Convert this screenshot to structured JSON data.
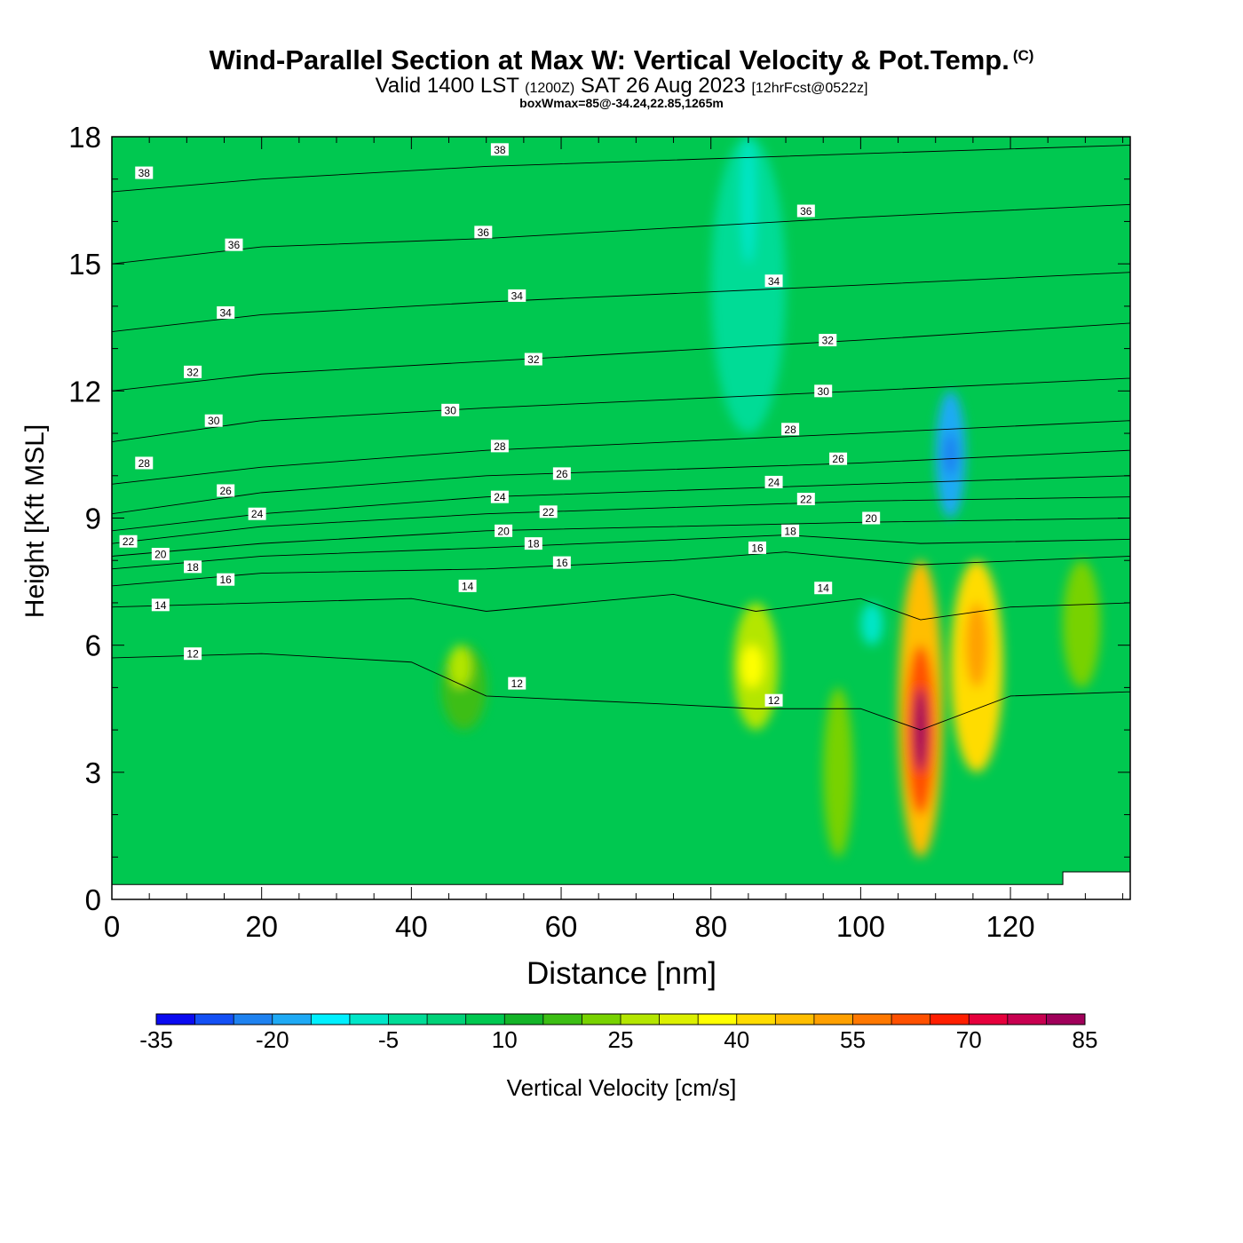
{
  "header": {
    "title": "Wind-Parallel Section at Max W: Vertical Velocity & Pot.Temp.",
    "copyright": "(C)",
    "valid_pre": "Valid 1400 LST",
    "valid_utc": "(1200Z)",
    "valid_date": "SAT 26 Aug 2023",
    "forecast": "[12hrFcst@0522z]",
    "boxwmax": "boxWmax=85@-34.24,22.85,1265m"
  },
  "chart_data": {
    "type": "heatmap",
    "xlabel": "Distance [nm]",
    "ylabel": "Height [Kft MSL]",
    "xlim": [
      0,
      136
    ],
    "ylim": [
      0,
      18
    ],
    "xticks": [
      0,
      20,
      40,
      60,
      80,
      100,
      120
    ],
    "yticks": [
      0,
      3,
      6,
      9,
      12,
      15,
      18
    ],
    "colorbar": {
      "label": "Vertical Velocity [cm/s]",
      "tick_labels": [
        -35,
        -20,
        -5,
        10,
        25,
        40,
        55,
        70,
        85
      ],
      "levels": [
        -35,
        -30,
        -25,
        -20,
        -15,
        -10,
        -5,
        0,
        5,
        10,
        15,
        20,
        25,
        30,
        35,
        40,
        45,
        50,
        55,
        60,
        65,
        70,
        75,
        80,
        85
      ],
      "colors": [
        "#0a0af0",
        "#1450f5",
        "#1e82f0",
        "#1eaaf5",
        "#00f0ff",
        "#00e6c8",
        "#00dc96",
        "#00d278",
        "#00c850",
        "#14b428",
        "#3cbe14",
        "#78d200",
        "#b4e600",
        "#dcf000",
        "#ffff00",
        "#ffdc00",
        "#ffbe00",
        "#ffa000",
        "#ff7800",
        "#ff5000",
        "#ff1e00",
        "#e6003c",
        "#c80050",
        "#a0005a"
      ]
    },
    "cells": [
      {
        "x": [
          100,
          103
        ],
        "y": [
          6,
          7
        ],
        "w": -10
      },
      {
        "x": [
          110,
          114
        ],
        "y": [
          9,
          12
        ],
        "w": -20
      },
      {
        "x": [
          111,
          113
        ],
        "y": [
          10,
          11
        ],
        "w": -25
      },
      {
        "x": [
          80,
          90
        ],
        "y": [
          11,
          18
        ],
        "w": -5
      },
      {
        "x": [
          84,
          86
        ],
        "y": [
          15,
          18
        ],
        "w": -10
      },
      {
        "x": [
          44,
          50
        ],
        "y": [
          4,
          6
        ],
        "w": 15
      },
      {
        "x": [
          45,
          48
        ],
        "y": [
          5,
          6
        ],
        "w": 25
      },
      {
        "x": [
          83,
          89
        ],
        "y": [
          4,
          7
        ],
        "w": 25
      },
      {
        "x": [
          84,
          87
        ],
        "y": [
          5,
          6
        ],
        "w": 35
      },
      {
        "x": [
          105,
          111
        ],
        "y": [
          1,
          8
        ],
        "w": 45
      },
      {
        "x": [
          106,
          110
        ],
        "y": [
          2,
          6
        ],
        "w": 60
      },
      {
        "x": [
          107,
          109
        ],
        "y": [
          3,
          5
        ],
        "w": 80
      },
      {
        "x": [
          112,
          119
        ],
        "y": [
          3,
          8
        ],
        "w": 40
      },
      {
        "x": [
          114,
          117
        ],
        "y": [
          5,
          7
        ],
        "w": 50
      },
      {
        "x": [
          95,
          99
        ],
        "y": [
          1,
          5
        ],
        "w": 20
      },
      {
        "x": [
          127,
          132
        ],
        "y": [
          5,
          8
        ],
        "w": 20
      }
    ],
    "theta_contours": [
      {
        "label": "12",
        "points": [
          [
            0,
            5.7
          ],
          [
            20,
            5.8
          ],
          [
            40,
            5.6
          ],
          [
            50,
            4.8
          ],
          [
            75,
            4.6
          ],
          [
            86,
            4.5
          ],
          [
            100,
            4.5
          ],
          [
            108,
            4.0
          ],
          [
            120,
            4.8
          ],
          [
            136,
            4.9
          ]
        ]
      },
      {
        "label": "14",
        "points": [
          [
            0,
            6.9
          ],
          [
            20,
            7.0
          ],
          [
            40,
            7.1
          ],
          [
            50,
            6.8
          ],
          [
            75,
            7.2
          ],
          [
            86,
            6.8
          ],
          [
            100,
            7.1
          ],
          [
            108,
            6.6
          ],
          [
            120,
            6.9
          ],
          [
            136,
            7.0
          ]
        ]
      },
      {
        "label": "16",
        "points": [
          [
            0,
            7.4
          ],
          [
            20,
            7.7
          ],
          [
            50,
            7.8
          ],
          [
            75,
            8.0
          ],
          [
            90,
            8.2
          ],
          [
            108,
            7.9
          ],
          [
            136,
            8.1
          ]
        ]
      },
      {
        "label": "18",
        "points": [
          [
            0,
            7.8
          ],
          [
            20,
            8.1
          ],
          [
            50,
            8.3
          ],
          [
            90,
            8.6
          ],
          [
            108,
            8.4
          ],
          [
            136,
            8.5
          ]
        ]
      },
      {
        "label": "20",
        "points": [
          [
            0,
            8.1
          ],
          [
            20,
            8.4
          ],
          [
            50,
            8.7
          ],
          [
            100,
            8.9
          ],
          [
            136,
            9.0
          ]
        ]
      },
      {
        "label": "22",
        "points": [
          [
            0,
            8.4
          ],
          [
            20,
            8.8
          ],
          [
            50,
            9.1
          ],
          [
            100,
            9.4
          ],
          [
            136,
            9.5
          ]
        ]
      },
      {
        "label": "24",
        "points": [
          [
            0,
            8.7
          ],
          [
            20,
            9.1
          ],
          [
            50,
            9.5
          ],
          [
            100,
            9.8
          ],
          [
            136,
            10.0
          ]
        ]
      },
      {
        "label": "26",
        "points": [
          [
            0,
            9.1
          ],
          [
            20,
            9.6
          ],
          [
            50,
            10.0
          ],
          [
            100,
            10.3
          ],
          [
            136,
            10.6
          ]
        ]
      },
      {
        "label": "28",
        "points": [
          [
            0,
            9.8
          ],
          [
            20,
            10.2
          ],
          [
            50,
            10.6
          ],
          [
            100,
            11.0
          ],
          [
            136,
            11.3
          ]
        ]
      },
      {
        "label": "30",
        "points": [
          [
            0,
            10.8
          ],
          [
            20,
            11.3
          ],
          [
            50,
            11.6
          ],
          [
            100,
            12.0
          ],
          [
            136,
            12.3
          ]
        ]
      },
      {
        "label": "32",
        "points": [
          [
            0,
            12.0
          ],
          [
            20,
            12.4
          ],
          [
            50,
            12.7
          ],
          [
            100,
            13.2
          ],
          [
            136,
            13.6
          ]
        ]
      },
      {
        "label": "34",
        "points": [
          [
            0,
            13.4
          ],
          [
            20,
            13.8
          ],
          [
            50,
            14.1
          ],
          [
            100,
            14.5
          ],
          [
            136,
            14.8
          ]
        ]
      },
      {
        "label": "36",
        "points": [
          [
            0,
            15.0
          ],
          [
            20,
            15.4
          ],
          [
            50,
            15.6
          ],
          [
            100,
            16.1
          ],
          [
            136,
            16.4
          ]
        ]
      },
      {
        "label": "38",
        "points": [
          [
            0,
            16.7
          ],
          [
            20,
            17.0
          ],
          [
            50,
            17.3
          ],
          [
            100,
            17.6
          ],
          [
            136,
            17.8
          ]
        ]
      }
    ],
    "contour_labels": [
      {
        "text": "38",
        "x": 4.3,
        "y": 17.15
      },
      {
        "text": "38",
        "x": 51.8,
        "y": 17.7
      },
      {
        "text": "36",
        "x": 16.3,
        "y": 15.45
      },
      {
        "text": "36",
        "x": 49.6,
        "y": 15.75
      },
      {
        "text": "36",
        "x": 92.7,
        "y": 16.25
      },
      {
        "text": "34",
        "x": 15.2,
        "y": 13.85
      },
      {
        "text": "34",
        "x": 54.1,
        "y": 14.25
      },
      {
        "text": "34",
        "x": 88.4,
        "y": 14.6
      },
      {
        "text": "32",
        "x": 10.8,
        "y": 12.45
      },
      {
        "text": "32",
        "x": 56.3,
        "y": 12.75
      },
      {
        "text": "32",
        "x": 95.6,
        "y": 13.2
      },
      {
        "text": "30",
        "x": 13.6,
        "y": 11.3
      },
      {
        "text": "30",
        "x": 45.2,
        "y": 11.55
      },
      {
        "text": "30",
        "x": 95.0,
        "y": 12.0
      },
      {
        "text": "28",
        "x": 4.3,
        "y": 10.3
      },
      {
        "text": "28",
        "x": 51.8,
        "y": 10.7
      },
      {
        "text": "28",
        "x": 90.6,
        "y": 11.1
      },
      {
        "text": "26",
        "x": 15.2,
        "y": 9.65
      },
      {
        "text": "26",
        "x": 60.1,
        "y": 10.05
      },
      {
        "text": "26",
        "x": 97.0,
        "y": 10.4
      },
      {
        "text": "24",
        "x": 19.4,
        "y": 9.1
      },
      {
        "text": "24",
        "x": 51.8,
        "y": 9.5
      },
      {
        "text": "24",
        "x": 88.4,
        "y": 9.85
      },
      {
        "text": "22",
        "x": 2.2,
        "y": 8.45
      },
      {
        "text": "22",
        "x": 58.3,
        "y": 9.15
      },
      {
        "text": "22",
        "x": 92.7,
        "y": 9.45
      },
      {
        "text": "20",
        "x": 6.5,
        "y": 8.15
      },
      {
        "text": "20",
        "x": 52.3,
        "y": 8.7
      },
      {
        "text": "20",
        "x": 101.4,
        "y": 9.0
      },
      {
        "text": "18",
        "x": 10.8,
        "y": 7.85
      },
      {
        "text": "18",
        "x": 56.3,
        "y": 8.4
      },
      {
        "text": "18",
        "x": 90.6,
        "y": 8.7
      },
      {
        "text": "16",
        "x": 15.2,
        "y": 7.55
      },
      {
        "text": "16",
        "x": 60.1,
        "y": 7.95
      },
      {
        "text": "16",
        "x": 86.2,
        "y": 8.3
      },
      {
        "text": "14",
        "x": 6.5,
        "y": 6.95
      },
      {
        "text": "14",
        "x": 47.5,
        "y": 7.4
      },
      {
        "text": "14",
        "x": 95.0,
        "y": 7.35
      },
      {
        "text": "12",
        "x": 10.8,
        "y": 5.8
      },
      {
        "text": "12",
        "x": 54.1,
        "y": 5.1
      },
      {
        "text": "12",
        "x": 88.4,
        "y": 4.7
      }
    ],
    "terrain": [
      [
        0,
        0.35
      ],
      [
        127,
        0.35
      ],
      [
        127,
        0.65
      ],
      [
        136,
        0.65
      ]
    ]
  }
}
